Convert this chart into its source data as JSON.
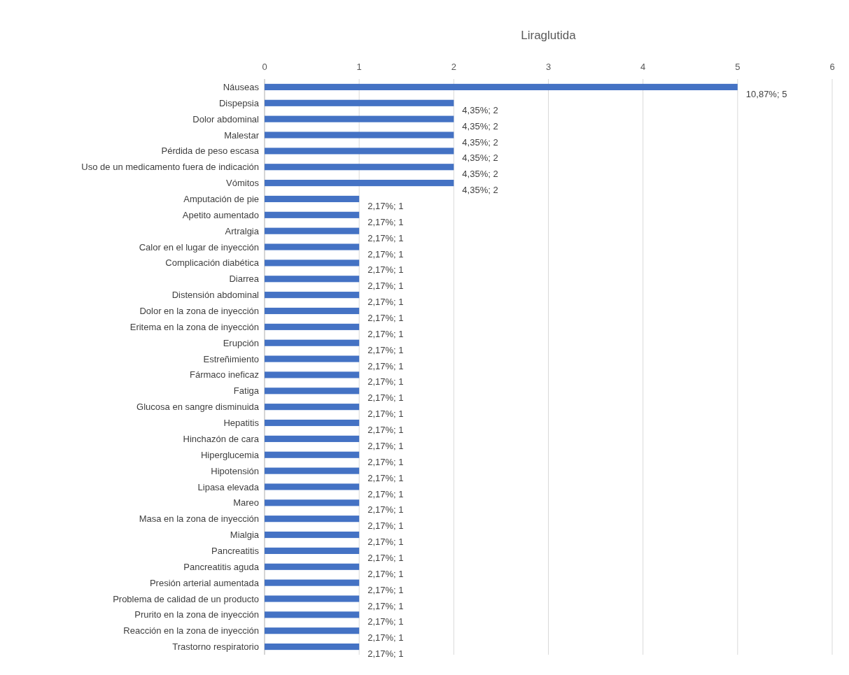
{
  "chart_data": {
    "type": "bar",
    "orientation": "horizontal",
    "title": "Liraglutida",
    "categories": [
      "Náuseas",
      "Dispepsia",
      "Dolor abdominal",
      "Malestar",
      "Pérdida de peso escasa",
      "Uso de un medicamento fuera de indicación",
      "Vómitos",
      "Amputación de pie",
      "Apetito aumentado",
      "Artralgia",
      "Calor en el lugar de inyección",
      "Complicación diabética",
      "Diarrea",
      "Distensión abdominal",
      "Dolor en la zona de inyección",
      "Eritema en la zona de inyección",
      "Erupción",
      "Estreñimiento",
      "Fármaco ineficaz",
      "Fatiga",
      "Glucosa en sangre disminuida",
      "Hepatitis",
      "Hinchazón de cara",
      "Hiperglucemia",
      "Hipotensión",
      "Lipasa elevada",
      "Mareo",
      "Masa en la zona de inyección",
      "Mialgia",
      "Pancreatitis",
      "Pancreatitis aguda",
      "Presión arterial aumentada",
      "Problema de calidad de un producto",
      "Prurito en la zona de inyección",
      "Reacción en la zona de inyección",
      "Trastorno respiratorio"
    ],
    "values": [
      5,
      2,
      2,
      2,
      2,
      2,
      2,
      1,
      1,
      1,
      1,
      1,
      1,
      1,
      1,
      1,
      1,
      1,
      1,
      1,
      1,
      1,
      1,
      1,
      1,
      1,
      1,
      1,
      1,
      1,
      1,
      1,
      1,
      1,
      1,
      1
    ],
    "value_labels": [
      "10,87%; 5",
      "4,35%; 2",
      "4,35%; 2",
      "4,35%; 2",
      "4,35%; 2",
      "4,35%; 2",
      "4,35%; 2",
      "2,17%; 1",
      "2,17%; 1",
      "2,17%; 1",
      "2,17%; 1",
      "2,17%; 1",
      "2,17%; 1",
      "2,17%; 1",
      "2,17%; 1",
      "2,17%; 1",
      "2,17%; 1",
      "2,17%; 1",
      "2,17%; 1",
      "2,17%; 1",
      "2,17%; 1",
      "2,17%; 1",
      "2,17%; 1",
      "2,17%; 1",
      "2,17%; 1",
      "2,17%; 1",
      "2,17%; 1",
      "2,17%; 1",
      "2,17%; 1",
      "2,17%; 1",
      "2,17%; 1",
      "2,17%; 1",
      "2,17%; 1",
      "2,17%; 1",
      "2,17%; 1",
      "2,17%; 1"
    ],
    "color": "#4472c4",
    "xlim": [
      0,
      6
    ],
    "xticks": [
      0,
      1,
      2,
      3,
      4,
      5,
      6
    ],
    "grid": "x"
  }
}
